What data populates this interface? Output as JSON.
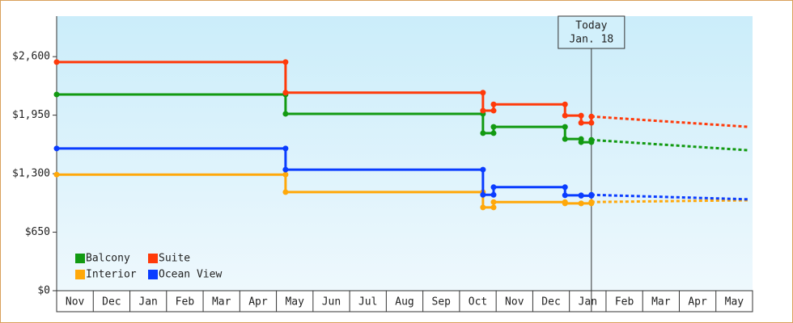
{
  "chart_data": {
    "type": "step-line",
    "x": [
      0,
      6.25,
      6.25,
      11.64,
      11.64,
      11.93,
      11.93,
      13.88,
      13.88,
      14.32,
      14.32,
      14.6,
      14.6
    ],
    "forecast_x": [
      14.6,
      18.9
    ],
    "series": [
      {
        "name": "Balcony",
        "color": "#129a12",
        "values": [
          2180,
          2180,
          1965,
          1965,
          1750,
          1750,
          1820,
          1820,
          1685,
          1685,
          1650,
          1650,
          1675
        ],
        "forecast_values": [
          1675,
          1560
        ]
      },
      {
        "name": "Suite",
        "color": "#ff3a0a",
        "values": [
          2540,
          2540,
          2200,
          2200,
          2000,
          2000,
          2070,
          2070,
          1945,
          1945,
          1865,
          1865,
          1935
        ],
        "forecast_values": [
          1935,
          1820
        ]
      },
      {
        "name": "Interior",
        "color": "#ffa80a",
        "values": [
          1290,
          1290,
          1095,
          1095,
          925,
          925,
          985,
          985,
          970,
          970,
          970,
          970,
          985
        ],
        "forecast_values": [
          985,
          1005
        ]
      },
      {
        "name": "Ocean View",
        "color": "#0a3cff",
        "values": [
          1580,
          1580,
          1345,
          1345,
          1065,
          1065,
          1150,
          1150,
          1060,
          1060,
          1055,
          1055,
          1065
        ],
        "forecast_values": [
          1065,
          1015
        ]
      }
    ],
    "xlim": [
      0,
      19
    ],
    "xticks": [
      {
        "value": 0.5,
        "label": "Nov"
      },
      {
        "value": 1.5,
        "label": "Dec"
      },
      {
        "value": 2.5,
        "label": "Jan"
      },
      {
        "value": 3.5,
        "label": "Feb"
      },
      {
        "value": 4.5,
        "label": "Mar"
      },
      {
        "value": 5.5,
        "label": "Apr"
      },
      {
        "value": 6.5,
        "label": "May"
      },
      {
        "value": 7.5,
        "label": "Jun"
      },
      {
        "value": 8.5,
        "label": "Jul"
      },
      {
        "value": 9.5,
        "label": "Aug"
      },
      {
        "value": 10.5,
        "label": "Sep"
      },
      {
        "value": 11.5,
        "label": "Oct"
      },
      {
        "value": 12.5,
        "label": "Nov"
      },
      {
        "value": 13.5,
        "label": "Dec"
      },
      {
        "value": 14.5,
        "label": "Jan"
      },
      {
        "value": 15.5,
        "label": "Feb"
      },
      {
        "value": 16.5,
        "label": "Mar"
      },
      {
        "value": 17.5,
        "label": "Apr"
      },
      {
        "value": 18.5,
        "label": "May"
      }
    ],
    "ylim": [
      0,
      3050
    ],
    "yticks": [
      {
        "value": 0,
        "label": "$0"
      },
      {
        "value": 650,
        "label": "$650"
      },
      {
        "value": 1300,
        "label": "$1,300"
      },
      {
        "value": 1950,
        "label": "$1,950"
      },
      {
        "value": 2600,
        "label": "$2,600"
      }
    ],
    "annotation": {
      "x": 14.6,
      "lines": [
        "Today",
        "Jan. 18"
      ]
    },
    "legend": "bottom-left"
  }
}
